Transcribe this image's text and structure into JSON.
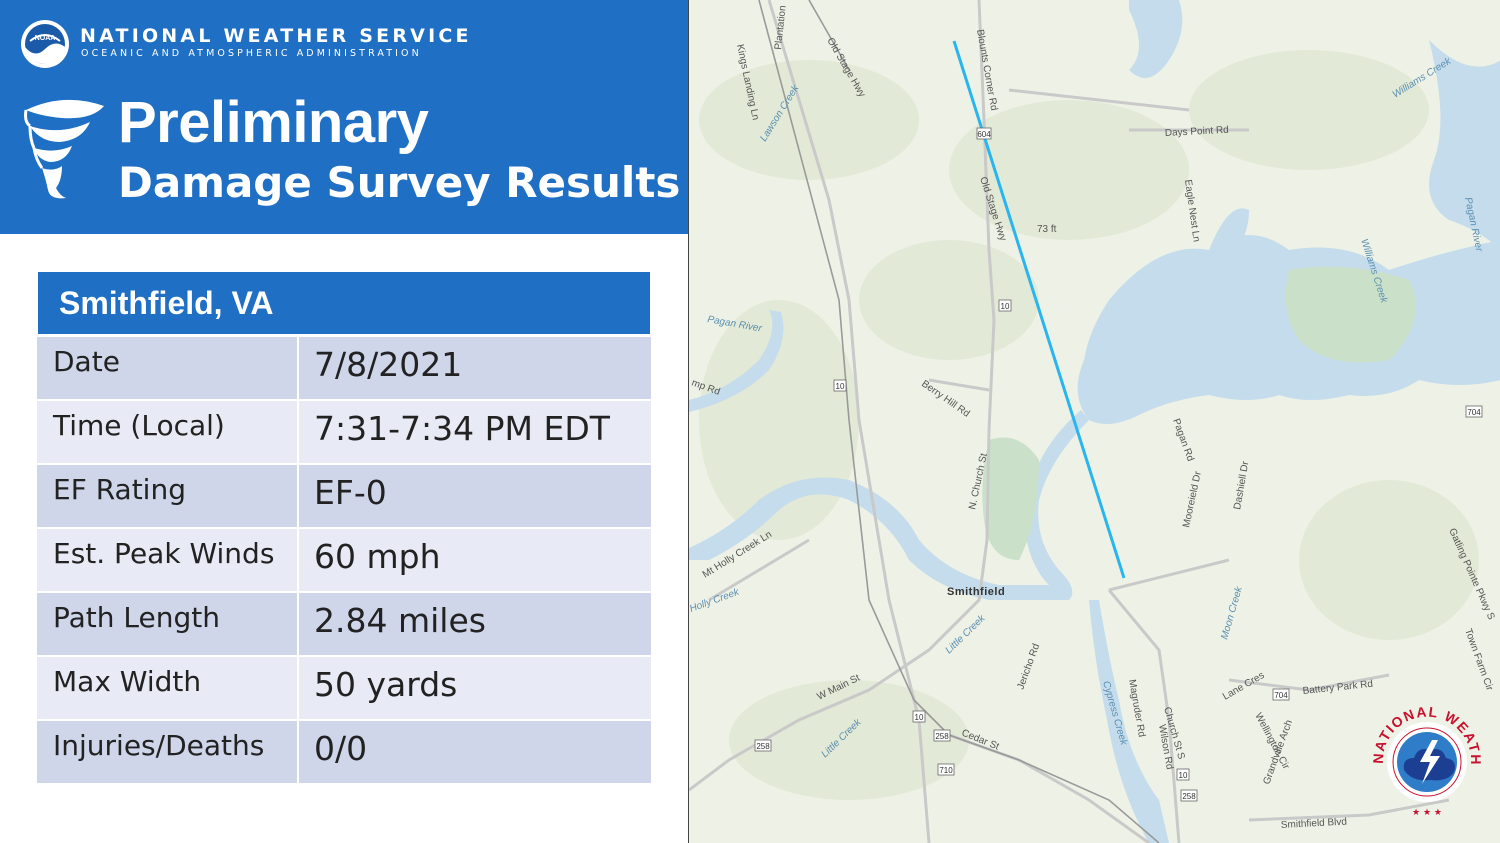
{
  "header": {
    "agency_name": "NATIONAL WEATHER SERVICE",
    "agency_sub": "OCEANIC AND ATMOSPHERIC ADMINISTRATION",
    "noaa_logo_text": "NOAA",
    "title_line1": "Preliminary",
    "title_line2": "Damage Survey Results",
    "background_color": "#1f6fc4"
  },
  "survey": {
    "location": "Smithfield, VA",
    "rows": [
      {
        "label": "Date",
        "value": "7/8/2021"
      },
      {
        "label": "Time (Local)",
        "value": "7:31-7:34 PM EDT"
      },
      {
        "label": "EF Rating",
        "value": "EF-0"
      },
      {
        "label": "Est. Peak Winds",
        "value": "60 mph"
      },
      {
        "label": "Path Length",
        "value": "2.84 miles"
      },
      {
        "label": "Max Width",
        "value": "50 yards"
      },
      {
        "label": "Injuries/Deaths",
        "value": "0/0"
      }
    ]
  },
  "map": {
    "track_color": "#29b6ee",
    "water_color": "#c4dcec",
    "roads": [
      "Old Stage Hwy",
      "Blounts Corner Rd",
      "Kings Landing Ln",
      "Plantation",
      "Days Point Rd",
      "Eagle Nest Ln",
      "Old Stage Hwy",
      "Berry Hill Rd",
      "N. Church St",
      "Mt Holly Creek Ln",
      "Mooreield Dr",
      "Dashiell Dr",
      "W Main St",
      "Jericho Rd",
      "Cedar St",
      "Magruder Rd",
      "Church St S",
      "Wilson Rd",
      "Wellington Cir",
      "Grandville Arch",
      "Battery Park Rd",
      "Lane Cres",
      "Smithfield Blvd",
      "Gatling Pointe Pkwy S",
      "Town Farm Cir",
      "Pagan Rd",
      "mp Rd"
    ],
    "water_names": [
      "Lawson Creek",
      "Williams Creek",
      "Pagan River",
      "Pagan River",
      "Williams Creek",
      "Holly Creek",
      "Little Creek",
      "Little Creek",
      "Moon Creek",
      "Cypress Creek"
    ],
    "town": "Smithfield",
    "elevation": "73 ft",
    "shields": [
      "604",
      "10",
      "10",
      "704",
      "258",
      "10",
      "258",
      "710",
      "704",
      "10",
      "258"
    ],
    "logo_text": "NATIONAL WEATHER SERVICE"
  }
}
